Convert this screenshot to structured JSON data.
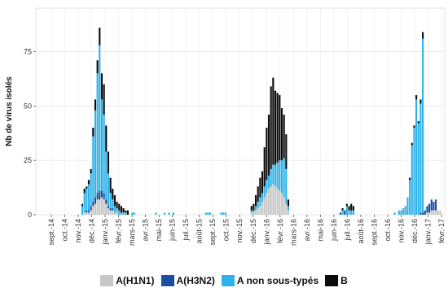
{
  "chart_data": {
    "type": "bar",
    "stacked": true,
    "ylabel": "Nb de virus isolés",
    "xlabel": "",
    "ylim": [
      0,
      95
    ],
    "yticks": [
      0,
      25,
      50,
      75
    ],
    "grid": true,
    "legend_position": "bottom",
    "x_tick_labels": [
      "sept.-14",
      "oct.-14",
      "nov.-14",
      "déc.-14",
      "janv.-15",
      "févr.-15",
      "mars-15",
      "avr.-15",
      "mai-15",
      "juin-15",
      "juil.-15",
      "août-15",
      "sept.-15",
      "oct.-15",
      "nov.-15",
      "déc.-15",
      "janv.-16",
      "févr.-16",
      "mars-16",
      "avr.-16",
      "mai-16",
      "juin-16",
      "juil.-16",
      "août-16",
      "sept.-16",
      "oct.-16",
      "nov.-16",
      "déc.-16",
      "janv.-17",
      "févr.-17"
    ],
    "series": [
      {
        "name": "A(H1N1)",
        "color": "#c7c7c7",
        "values": [
          0,
          0,
          0,
          0,
          0,
          0,
          0,
          0,
          0,
          0,
          0,
          0,
          0,
          0,
          0,
          0,
          0,
          0,
          0,
          1,
          1,
          1,
          2,
          4,
          5,
          7,
          7,
          8,
          7,
          5,
          3,
          2,
          2,
          1,
          1,
          0,
          0,
          0,
          0,
          0,
          0,
          0,
          0,
          0,
          0,
          0,
          0,
          0,
          0,
          0,
          0,
          0,
          0,
          0,
          0,
          0,
          0,
          0,
          0,
          0,
          0,
          0,
          0,
          0,
          0,
          0,
          0,
          0,
          0,
          0,
          0,
          0,
          0,
          0,
          0,
          0,
          0,
          0,
          0,
          0,
          0,
          0,
          0,
          0,
          0,
          0,
          0,
          0,
          0,
          0,
          0,
          0,
          0,
          0,
          0,
          0,
          1,
          1,
          2,
          3,
          4,
          6,
          8,
          10,
          12,
          13,
          14,
          13,
          12,
          11,
          10,
          8,
          5,
          2,
          0,
          0,
          0,
          0,
          0,
          0,
          0,
          0,
          0,
          0,
          0,
          0,
          0,
          0,
          0,
          0,
          0,
          0,
          0,
          0,
          0,
          0,
          0,
          0,
          0,
          0,
          0,
          0,
          0,
          0,
          0,
          0,
          0,
          0,
          0,
          0,
          0,
          0,
          0,
          0,
          0,
          0,
          0,
          0,
          0,
          0,
          0,
          0,
          0,
          0,
          0,
          0,
          0,
          0,
          0,
          0,
          0,
          0,
          0,
          0,
          0,
          0,
          0,
          1,
          1,
          2,
          2,
          2,
          2,
          2
        ]
      },
      {
        "name": "A(H3N2)",
        "color": "#1a4fa0",
        "values": [
          0,
          0,
          0,
          0,
          0,
          0,
          0,
          0,
          0,
          0,
          0,
          0,
          0,
          0,
          0,
          0,
          0,
          0,
          0,
          0,
          1,
          1,
          2,
          2,
          3,
          3,
          4,
          3,
          3,
          2,
          1,
          1,
          1,
          0,
          0,
          0,
          0,
          0,
          0,
          0,
          0,
          0,
          0,
          0,
          0,
          0,
          0,
          0,
          0,
          0,
          0,
          0,
          0,
          0,
          0,
          0,
          0,
          0,
          0,
          0,
          0,
          0,
          0,
          0,
          0,
          0,
          0,
          0,
          0,
          0,
          0,
          0,
          0,
          0,
          0,
          0,
          0,
          0,
          0,
          0,
          0,
          0,
          0,
          0,
          0,
          0,
          0,
          0,
          0,
          0,
          0,
          0,
          0,
          0,
          0,
          0,
          0,
          0,
          0,
          0,
          0,
          0,
          0,
          0,
          0,
          0,
          0,
          0,
          0,
          0,
          0,
          0,
          0,
          0,
          0,
          0,
          0,
          0,
          0,
          0,
          0,
          0,
          0,
          0,
          0,
          0,
          0,
          0,
          0,
          0,
          0,
          0,
          0,
          0,
          0,
          0,
          0,
          1,
          0,
          2,
          0,
          0,
          0,
          0,
          0,
          0,
          0,
          0,
          0,
          0,
          0,
          0,
          0,
          0,
          0,
          0,
          0,
          0,
          0,
          0,
          0,
          0,
          0,
          0,
          0,
          0,
          0,
          0,
          0,
          0,
          0,
          0,
          0,
          0,
          1,
          1,
          2,
          3,
          4,
          5,
          4,
          5
        ]
      },
      {
        "name": "A non sous-typés",
        "color": "#2eb2e8",
        "values": [
          0,
          0,
          0,
          0,
          0,
          0,
          0,
          0,
          0,
          0,
          0,
          0,
          0,
          0,
          0,
          0,
          0,
          0,
          4,
          9,
          10,
          12,
          15,
          30,
          40,
          55,
          67,
          42,
          36,
          22,
          15,
          7,
          4,
          3,
          2,
          2,
          1,
          1,
          1,
          0,
          0,
          1,
          1,
          0,
          0,
          0,
          0,
          0,
          0,
          0,
          0,
          0,
          1,
          0,
          0,
          0,
          1,
          0,
          1,
          0,
          1,
          0,
          0,
          0,
          0,
          0,
          0,
          0,
          0,
          0,
          0,
          0,
          0,
          0,
          0,
          1,
          1,
          1,
          0,
          0,
          0,
          0,
          1,
          1,
          1,
          0,
          0,
          0,
          0,
          0,
          0,
          0,
          0,
          0,
          0,
          0,
          1,
          1,
          2,
          3,
          4,
          4,
          5,
          6,
          6,
          8,
          9,
          10,
          12,
          14,
          15,
          18,
          16,
          2,
          0,
          0,
          0,
          0,
          0,
          0,
          0,
          0,
          0,
          0,
          0,
          0,
          0,
          0,
          0,
          0,
          0,
          0,
          0,
          0,
          0,
          0,
          0,
          0,
          2,
          0,
          4,
          2,
          2,
          2,
          0,
          0,
          0,
          0,
          0,
          0,
          0,
          0,
          0,
          0,
          0,
          0,
          0,
          0,
          0,
          0,
          0,
          0,
          1,
          0,
          2,
          2,
          3,
          4,
          8,
          16,
          32,
          40,
          53,
          42,
          50,
          80
        ]
      },
      {
        "name": "B",
        "color": "#0b0b0b",
        "values": [
          0,
          0,
          0,
          0,
          0,
          0,
          0,
          0,
          0,
          0,
          0,
          0,
          0,
          0,
          0,
          0,
          0,
          0,
          1,
          2,
          1,
          2,
          2,
          4,
          5,
          6,
          8,
          12,
          14,
          12,
          10,
          7,
          5,
          5,
          3,
          3,
          3,
          2,
          1,
          2,
          0,
          0,
          0,
          0,
          0,
          0,
          0,
          0,
          0,
          0,
          0,
          0,
          0,
          0,
          0,
          0,
          0,
          0,
          0,
          0,
          0,
          0,
          0,
          0,
          0,
          0,
          0,
          0,
          0,
          0,
          0,
          0,
          0,
          0,
          0,
          0,
          0,
          0,
          0,
          0,
          0,
          0,
          0,
          0,
          0,
          0,
          0,
          0,
          0,
          0,
          0,
          0,
          0,
          0,
          0,
          0,
          2,
          3,
          5,
          7,
          9,
          10,
          18,
          24,
          28,
          38,
          40,
          34,
          32,
          30,
          24,
          20,
          16,
          3,
          0,
          0,
          0,
          0,
          0,
          0,
          0,
          0,
          0,
          0,
          0,
          0,
          0,
          0,
          0,
          0,
          0,
          0,
          0,
          0,
          0,
          0,
          0,
          0,
          1,
          0,
          1,
          2,
          3,
          2,
          0,
          0,
          0,
          0,
          0,
          0,
          0,
          0,
          0,
          0,
          0,
          0,
          0,
          0,
          0,
          0,
          0,
          0,
          0,
          0,
          0,
          0,
          0,
          0,
          0,
          1,
          1,
          1,
          2,
          1,
          2,
          3
        ]
      }
    ]
  }
}
